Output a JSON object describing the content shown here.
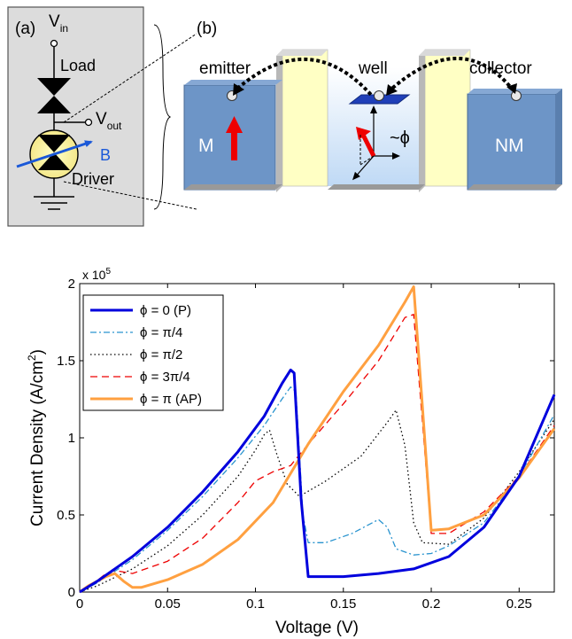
{
  "panel_a": {
    "label": "(a)",
    "vin_main": "V",
    "vin_sub": "in",
    "load": "Load",
    "vout_main": "V",
    "vout_sub": "out",
    "b_label": "B",
    "driver": "Driver"
  },
  "panel_b": {
    "label": "(b)",
    "emitter": "emitter",
    "well": "well",
    "collector": "collector",
    "m_label": "M",
    "nm_label": "NM",
    "phi_label": "~ϕ"
  },
  "colors": {
    "p": "#0000dd",
    "pi4": "#2a94cf",
    "pi2": "#000000",
    "3pi4": "#ee0000",
    "ap": "#ffa040",
    "block": "#6d95c7",
    "barrier": "#ffffc4",
    "magnet_arrow": "#ee0000"
  },
  "chart_data": {
    "type": "line",
    "xlabel": "Voltage (V)",
    "ylabel_main": "Current Density (A/cm",
    "ylabel_sup": "2",
    "ylabel_end": ")",
    "scale_main": "x 10",
    "scale_exp": "5",
    "xlim": [
      0,
      0.27
    ],
    "ylim": [
      0,
      2
    ],
    "xticks": [
      0,
      0.05,
      0.1,
      0.15,
      0.2,
      0.25
    ],
    "xtick_labels": [
      "0",
      "0.05",
      "0.1",
      "0.15",
      "0.2",
      "0.25"
    ],
    "yticks": [
      0,
      0.5,
      1,
      1.5,
      2
    ],
    "ytick_labels": [
      "0",
      "0.5",
      "1",
      "1.5",
      "2"
    ],
    "legend_position": "top-left",
    "grid": false,
    "series": [
      {
        "name": "ϕ = 0 (P)",
        "color": "#0000dd",
        "dash": "",
        "width": 3,
        "points": [
          [
            0,
            0
          ],
          [
            0.01,
            0.07
          ],
          [
            0.03,
            0.23
          ],
          [
            0.05,
            0.42
          ],
          [
            0.07,
            0.65
          ],
          [
            0.09,
            0.91
          ],
          [
            0.105,
            1.14
          ],
          [
            0.115,
            1.35
          ],
          [
            0.12,
            1.44
          ],
          [
            0.122,
            1.42
          ],
          [
            0.126,
            0.6
          ],
          [
            0.13,
            0.1
          ],
          [
            0.15,
            0.1
          ],
          [
            0.17,
            0.12
          ],
          [
            0.19,
            0.15
          ],
          [
            0.21,
            0.23
          ],
          [
            0.23,
            0.42
          ],
          [
            0.25,
            0.75
          ],
          [
            0.27,
            1.28
          ]
        ]
      },
      {
        "name": "ϕ = π/4",
        "color": "#2a94cf",
        "dash": "7,3,2,3",
        "width": 1.3,
        "points": [
          [
            0,
            0
          ],
          [
            0.01,
            0.06
          ],
          [
            0.03,
            0.21
          ],
          [
            0.05,
            0.4
          ],
          [
            0.07,
            0.62
          ],
          [
            0.09,
            0.87
          ],
          [
            0.105,
            1.08
          ],
          [
            0.115,
            1.25
          ],
          [
            0.12,
            1.33
          ],
          [
            0.123,
            1.3
          ],
          [
            0.127,
            0.5
          ],
          [
            0.13,
            0.32
          ],
          [
            0.14,
            0.32
          ],
          [
            0.155,
            0.38
          ],
          [
            0.17,
            0.47
          ],
          [
            0.175,
            0.42
          ],
          [
            0.18,
            0.28
          ],
          [
            0.19,
            0.24
          ],
          [
            0.2,
            0.25
          ],
          [
            0.21,
            0.3
          ],
          [
            0.23,
            0.45
          ],
          [
            0.25,
            0.75
          ],
          [
            0.27,
            1.15
          ]
        ]
      },
      {
        "name": "ϕ = π/2",
        "color": "#000000",
        "dash": "1.5,3",
        "width": 1.3,
        "points": [
          [
            0,
            0
          ],
          [
            0.01,
            0.04
          ],
          [
            0.03,
            0.15
          ],
          [
            0.05,
            0.3
          ],
          [
            0.07,
            0.5
          ],
          [
            0.09,
            0.75
          ],
          [
            0.1,
            0.92
          ],
          [
            0.105,
            1.02
          ],
          [
            0.108,
            1.05
          ],
          [
            0.112,
            0.9
          ],
          [
            0.118,
            0.7
          ],
          [
            0.125,
            0.62
          ],
          [
            0.14,
            0.72
          ],
          [
            0.16,
            0.88
          ],
          [
            0.175,
            1.1
          ],
          [
            0.18,
            1.18
          ],
          [
            0.185,
            0.95
          ],
          [
            0.19,
            0.45
          ],
          [
            0.195,
            0.32
          ],
          [
            0.21,
            0.31
          ],
          [
            0.23,
            0.48
          ],
          [
            0.25,
            0.78
          ],
          [
            0.27,
            1.12
          ]
        ]
      },
      {
        "name": "ϕ = 3π/4",
        "color": "#ee0000",
        "dash": "8,5",
        "width": 1.3,
        "points": [
          [
            0,
            0
          ],
          [
            0.005,
            0.03
          ],
          [
            0.015,
            0.12
          ],
          [
            0.02,
            0.14
          ],
          [
            0.03,
            0.12
          ],
          [
            0.05,
            0.2
          ],
          [
            0.07,
            0.35
          ],
          [
            0.09,
            0.58
          ],
          [
            0.1,
            0.72
          ],
          [
            0.11,
            0.78
          ],
          [
            0.12,
            0.82
          ],
          [
            0.13,
            0.96
          ],
          [
            0.15,
            1.22
          ],
          [
            0.17,
            1.5
          ],
          [
            0.185,
            1.78
          ],
          [
            0.19,
            1.8
          ],
          [
            0.195,
            1.1
          ],
          [
            0.2,
            0.38
          ],
          [
            0.21,
            0.38
          ],
          [
            0.23,
            0.52
          ],
          [
            0.25,
            0.75
          ],
          [
            0.27,
            1.08
          ]
        ]
      },
      {
        "name": "ϕ = π (AP)",
        "color": "#ffa040",
        "dash": "",
        "width": 3,
        "points": [
          [
            0,
            0
          ],
          [
            0.005,
            0.04
          ],
          [
            0.015,
            0.1
          ],
          [
            0.02,
            0.12
          ],
          [
            0.025,
            0.07
          ],
          [
            0.03,
            0.03
          ],
          [
            0.035,
            0.03
          ],
          [
            0.05,
            0.08
          ],
          [
            0.07,
            0.18
          ],
          [
            0.09,
            0.34
          ],
          [
            0.11,
            0.58
          ],
          [
            0.13,
            0.96
          ],
          [
            0.15,
            1.3
          ],
          [
            0.17,
            1.6
          ],
          [
            0.185,
            1.88
          ],
          [
            0.19,
            1.98
          ],
          [
            0.195,
            1.2
          ],
          [
            0.2,
            0.4
          ],
          [
            0.21,
            0.41
          ],
          [
            0.23,
            0.5
          ],
          [
            0.25,
            0.74
          ],
          [
            0.27,
            1.06
          ]
        ]
      }
    ]
  }
}
